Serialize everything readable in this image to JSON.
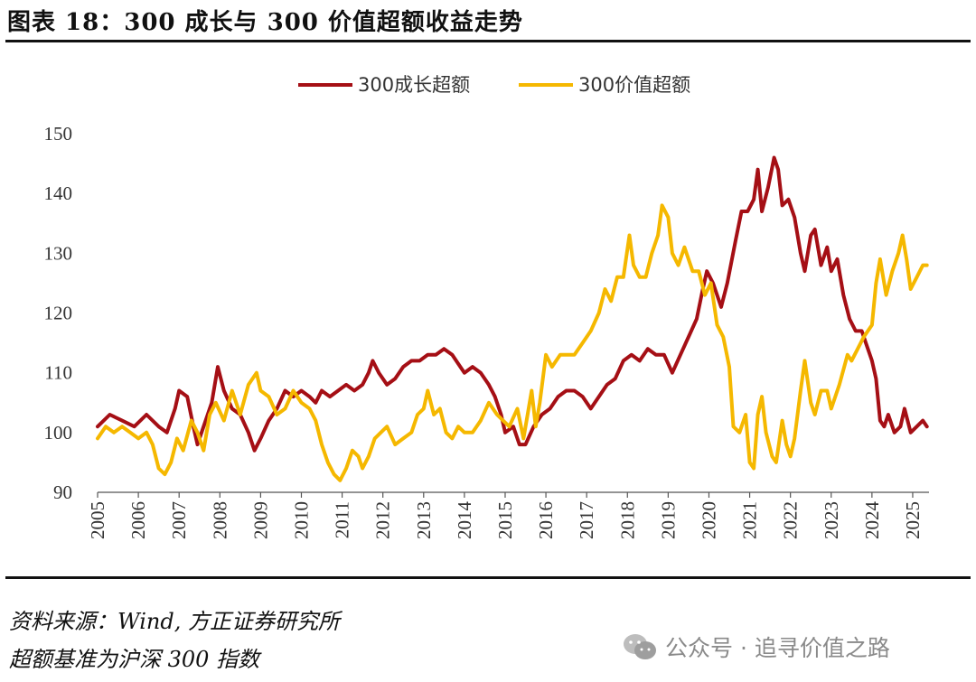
{
  "header": {
    "title": "图表 18：300 成长与 300 价值超额收益走势"
  },
  "footer": {
    "source": "资料来源：Wind, 方正证券研究所",
    "note": "超额基准为沪深 300 指数",
    "watermark": "公众号 · 追寻价值之路",
    "watermark_icon": "wechat-icon"
  },
  "chart_data": {
    "type": "line",
    "title": "",
    "xlabel": "",
    "ylabel": "",
    "ylim": [
      90,
      150
    ],
    "yticks": [
      90,
      100,
      110,
      120,
      130,
      140,
      150
    ],
    "xlim": [
      2005,
      2025.4
    ],
    "xticks": [
      "2005",
      "2006",
      "2007",
      "2008",
      "2009",
      "2010",
      "2011",
      "2012",
      "2013",
      "2014",
      "2015",
      "2016",
      "2017",
      "2018",
      "2019",
      "2020",
      "2021",
      "2022",
      "2023",
      "2024",
      "2025"
    ],
    "legend_position": "top-center",
    "grid": false,
    "series": [
      {
        "name": "300成长超额",
        "color": "#a50f15",
        "points": [
          [
            2005.0,
            101
          ],
          [
            2005.3,
            103
          ],
          [
            2005.6,
            102
          ],
          [
            2005.9,
            101
          ],
          [
            2006.2,
            103
          ],
          [
            2006.5,
            101
          ],
          [
            2006.7,
            100
          ],
          [
            2006.9,
            104
          ],
          [
            2007.0,
            107
          ],
          [
            2007.2,
            106
          ],
          [
            2007.35,
            101
          ],
          [
            2007.45,
            98
          ],
          [
            2007.6,
            101
          ],
          [
            2007.8,
            105
          ],
          [
            2007.95,
            111
          ],
          [
            2008.1,
            107
          ],
          [
            2008.3,
            104
          ],
          [
            2008.5,
            103
          ],
          [
            2008.7,
            100
          ],
          [
            2008.85,
            97
          ],
          [
            2009.0,
            99
          ],
          [
            2009.2,
            102
          ],
          [
            2009.4,
            104
          ],
          [
            2009.6,
            107
          ],
          [
            2009.8,
            106
          ],
          [
            2010.0,
            107
          ],
          [
            2010.2,
            106
          ],
          [
            2010.35,
            105
          ],
          [
            2010.5,
            107
          ],
          [
            2010.7,
            106
          ],
          [
            2010.9,
            107
          ],
          [
            2011.1,
            108
          ],
          [
            2011.3,
            107
          ],
          [
            2011.5,
            108
          ],
          [
            2011.65,
            110
          ],
          [
            2011.75,
            112
          ],
          [
            2011.9,
            110
          ],
          [
            2012.1,
            108
          ],
          [
            2012.3,
            109
          ],
          [
            2012.5,
            111
          ],
          [
            2012.7,
            112
          ],
          [
            2012.9,
            112
          ],
          [
            2013.1,
            113
          ],
          [
            2013.3,
            113
          ],
          [
            2013.5,
            114
          ],
          [
            2013.7,
            113
          ],
          [
            2013.9,
            111
          ],
          [
            2014.0,
            110
          ],
          [
            2014.2,
            111
          ],
          [
            2014.4,
            110
          ],
          [
            2014.6,
            108
          ],
          [
            2014.75,
            106
          ],
          [
            2014.9,
            103
          ],
          [
            2015.0,
            100
          ],
          [
            2015.2,
            101
          ],
          [
            2015.35,
            98
          ],
          [
            2015.5,
            98
          ],
          [
            2015.7,
            101
          ],
          [
            2015.9,
            103
          ],
          [
            2016.1,
            104
          ],
          [
            2016.3,
            106
          ],
          [
            2016.5,
            107
          ],
          [
            2016.7,
            107
          ],
          [
            2016.9,
            106
          ],
          [
            2017.1,
            104
          ],
          [
            2017.3,
            106
          ],
          [
            2017.5,
            108
          ],
          [
            2017.7,
            109
          ],
          [
            2017.9,
            112
          ],
          [
            2018.1,
            113
          ],
          [
            2018.3,
            112
          ],
          [
            2018.5,
            114
          ],
          [
            2018.7,
            113
          ],
          [
            2018.9,
            113
          ],
          [
            2019.1,
            110
          ],
          [
            2019.3,
            113
          ],
          [
            2019.5,
            116
          ],
          [
            2019.7,
            119
          ],
          [
            2019.85,
            124
          ],
          [
            2019.95,
            127
          ],
          [
            2020.1,
            125
          ],
          [
            2020.3,
            121
          ],
          [
            2020.45,
            125
          ],
          [
            2020.65,
            132
          ],
          [
            2020.8,
            137
          ],
          [
            2020.95,
            137
          ],
          [
            2021.1,
            139
          ],
          [
            2021.2,
            144
          ],
          [
            2021.3,
            137
          ],
          [
            2021.45,
            141
          ],
          [
            2021.6,
            146
          ],
          [
            2021.7,
            144
          ],
          [
            2021.8,
            138
          ],
          [
            2021.95,
            139
          ],
          [
            2022.1,
            136
          ],
          [
            2022.25,
            130
          ],
          [
            2022.35,
            127
          ],
          [
            2022.5,
            133
          ],
          [
            2022.6,
            134
          ],
          [
            2022.75,
            128
          ],
          [
            2022.9,
            131
          ],
          [
            2023.0,
            127
          ],
          [
            2023.15,
            129
          ],
          [
            2023.3,
            123
          ],
          [
            2023.45,
            119
          ],
          [
            2023.6,
            117
          ],
          [
            2023.75,
            117
          ],
          [
            2023.85,
            115
          ],
          [
            2024.0,
            112
          ],
          [
            2024.1,
            109
          ],
          [
            2024.2,
            102
          ],
          [
            2024.3,
            101
          ],
          [
            2024.4,
            103
          ],
          [
            2024.55,
            100
          ],
          [
            2024.7,
            101
          ],
          [
            2024.8,
            104
          ],
          [
            2024.95,
            100
          ],
          [
            2025.1,
            101
          ],
          [
            2025.25,
            102
          ],
          [
            2025.35,
            101
          ]
        ]
      },
      {
        "name": "300价值超额",
        "color": "#f5b800",
        "points": [
          [
            2005.0,
            99
          ],
          [
            2005.2,
            101
          ],
          [
            2005.4,
            100
          ],
          [
            2005.6,
            101
          ],
          [
            2005.8,
            100
          ],
          [
            2006.0,
            99
          ],
          [
            2006.2,
            100
          ],
          [
            2006.35,
            98
          ],
          [
            2006.5,
            94
          ],
          [
            2006.65,
            93
          ],
          [
            2006.8,
            95
          ],
          [
            2006.95,
            99
          ],
          [
            2007.1,
            97
          ],
          [
            2007.3,
            102
          ],
          [
            2007.45,
            100
          ],
          [
            2007.6,
            97
          ],
          [
            2007.75,
            103
          ],
          [
            2007.9,
            105
          ],
          [
            2008.1,
            102
          ],
          [
            2008.3,
            107
          ],
          [
            2008.5,
            103
          ],
          [
            2008.7,
            108
          ],
          [
            2008.9,
            110
          ],
          [
            2009.0,
            107
          ],
          [
            2009.2,
            106
          ],
          [
            2009.4,
            103
          ],
          [
            2009.6,
            104
          ],
          [
            2009.8,
            107
          ],
          [
            2010.0,
            105
          ],
          [
            2010.2,
            104
          ],
          [
            2010.35,
            102
          ],
          [
            2010.5,
            98
          ],
          [
            2010.65,
            95
          ],
          [
            2010.8,
            93
          ],
          [
            2010.95,
            92
          ],
          [
            2011.1,
            94
          ],
          [
            2011.25,
            97
          ],
          [
            2011.4,
            96
          ],
          [
            2011.5,
            94
          ],
          [
            2011.65,
            96
          ],
          [
            2011.8,
            99
          ],
          [
            2011.95,
            100
          ],
          [
            2012.1,
            101
          ],
          [
            2012.3,
            98
          ],
          [
            2012.5,
            99
          ],
          [
            2012.7,
            100
          ],
          [
            2012.85,
            103
          ],
          [
            2013.0,
            104
          ],
          [
            2013.1,
            107
          ],
          [
            2013.25,
            103
          ],
          [
            2013.4,
            104
          ],
          [
            2013.55,
            100
          ],
          [
            2013.7,
            99
          ],
          [
            2013.85,
            101
          ],
          [
            2014.0,
            100
          ],
          [
            2014.2,
            100
          ],
          [
            2014.4,
            102
          ],
          [
            2014.6,
            105
          ],
          [
            2014.8,
            103
          ],
          [
            2014.95,
            102
          ],
          [
            2015.1,
            101
          ],
          [
            2015.3,
            104
          ],
          [
            2015.45,
            99
          ],
          [
            2015.55,
            103
          ],
          [
            2015.65,
            107
          ],
          [
            2015.75,
            101
          ],
          [
            2015.85,
            105
          ],
          [
            2016.0,
            113
          ],
          [
            2016.15,
            111
          ],
          [
            2016.35,
            113
          ],
          [
            2016.5,
            113
          ],
          [
            2016.7,
            113
          ],
          [
            2016.9,
            115
          ],
          [
            2017.1,
            117
          ],
          [
            2017.3,
            120
          ],
          [
            2017.45,
            124
          ],
          [
            2017.6,
            122
          ],
          [
            2017.75,
            126
          ],
          [
            2017.9,
            126
          ],
          [
            2018.05,
            133
          ],
          [
            2018.15,
            128
          ],
          [
            2018.3,
            126
          ],
          [
            2018.45,
            126
          ],
          [
            2018.6,
            130
          ],
          [
            2018.75,
            133
          ],
          [
            2018.85,
            138
          ],
          [
            2019.0,
            136
          ],
          [
            2019.1,
            130
          ],
          [
            2019.25,
            128
          ],
          [
            2019.4,
            131
          ],
          [
            2019.6,
            127
          ],
          [
            2019.75,
            127
          ],
          [
            2019.9,
            123
          ],
          [
            2020.05,
            125
          ],
          [
            2020.2,
            118
          ],
          [
            2020.35,
            116
          ],
          [
            2020.5,
            111
          ],
          [
            2020.6,
            101
          ],
          [
            2020.75,
            100
          ],
          [
            2020.9,
            103
          ],
          [
            2021.0,
            95
          ],
          [
            2021.1,
            94
          ],
          [
            2021.2,
            103
          ],
          [
            2021.3,
            106
          ],
          [
            2021.4,
            100
          ],
          [
            2021.55,
            96
          ],
          [
            2021.65,
            95
          ],
          [
            2021.8,
            102
          ],
          [
            2021.9,
            98
          ],
          [
            2022.0,
            96
          ],
          [
            2022.1,
            99
          ],
          [
            2022.25,
            107
          ],
          [
            2022.35,
            112
          ],
          [
            2022.5,
            105
          ],
          [
            2022.6,
            103
          ],
          [
            2022.75,
            107
          ],
          [
            2022.9,
            107
          ],
          [
            2023.0,
            104
          ],
          [
            2023.2,
            108
          ],
          [
            2023.4,
            113
          ],
          [
            2023.5,
            112
          ],
          [
            2023.65,
            114
          ],
          [
            2023.8,
            116
          ],
          [
            2024.0,
            118
          ],
          [
            2024.1,
            125
          ],
          [
            2024.2,
            129
          ],
          [
            2024.35,
            123
          ],
          [
            2024.5,
            127
          ],
          [
            2024.65,
            130
          ],
          [
            2024.75,
            133
          ],
          [
            2024.85,
            129
          ],
          [
            2024.95,
            124
          ],
          [
            2025.1,
            126
          ],
          [
            2025.25,
            128
          ],
          [
            2025.35,
            128
          ]
        ]
      }
    ]
  }
}
